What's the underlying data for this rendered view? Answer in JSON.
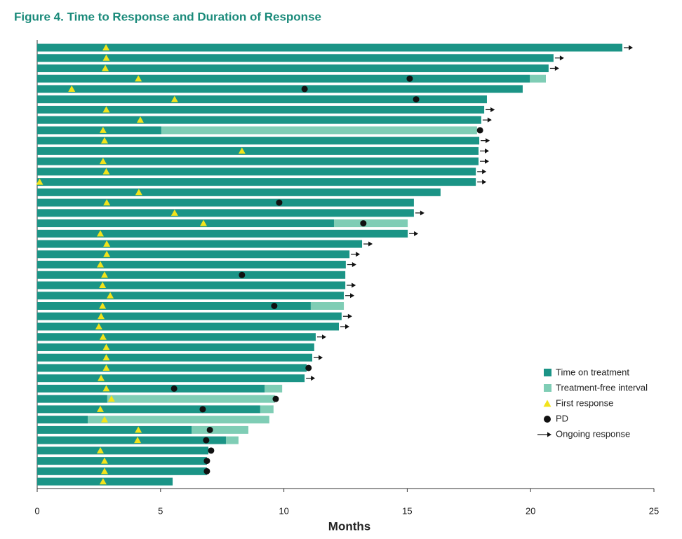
{
  "chart_data": {
    "type": "swimmer",
    "title": "Figure 4. Time to Response and Duration of Response",
    "x_label": "Months",
    "xlim": [
      0,
      25
    ],
    "xticks": [
      0,
      5,
      10,
      15,
      20,
      25
    ],
    "series": [
      {
        "name": "Time on treatment",
        "color": "#1b9486",
        "values": [
          23.72,
          20.93,
          20.73,
          19.97,
          19.68,
          18.23,
          18.12,
          18.0,
          5.03,
          17.92,
          17.89,
          17.89,
          17.78,
          17.78,
          16.35,
          15.27,
          15.27,
          12.03,
          15.02,
          13.17,
          12.66,
          12.51,
          12.49,
          12.49,
          12.43,
          11.09,
          12.34,
          12.23,
          11.29,
          11.23,
          11.15,
          10.92,
          10.84,
          9.22,
          2.84,
          9.04,
          2.05,
          6.26,
          7.65,
          6.94,
          6.88,
          6.88,
          5.49
        ]
      },
      {
        "name": "Treatment-free interval",
        "color": "#7fcdb5",
        "values": [
          null,
          null,
          null,
          20.62,
          null,
          null,
          null,
          null,
          17.83,
          null,
          null,
          null,
          null,
          null,
          null,
          null,
          null,
          15.02,
          null,
          null,
          null,
          null,
          null,
          null,
          null,
          12.43,
          null,
          null,
          null,
          null,
          null,
          null,
          null,
          9.93,
          9.64,
          9.58,
          9.41,
          8.56,
          8.16,
          null,
          null,
          null,
          null
        ]
      },
      {
        "name": "First response",
        "color": "#f2e31b",
        "values": [
          2.79,
          2.8,
          2.76,
          4.1,
          1.4,
          5.57,
          2.8,
          4.18,
          2.67,
          2.73,
          8.3,
          2.67,
          2.8,
          0.1,
          4.12,
          2.82,
          5.57,
          6.74,
          2.56,
          2.82,
          2.82,
          2.56,
          2.73,
          2.65,
          2.96,
          2.65,
          2.59,
          2.5,
          2.67,
          2.8,
          2.8,
          2.8,
          2.59,
          2.8,
          3.01,
          2.56,
          2.73,
          4.1,
          4.07,
          2.56,
          2.73,
          2.73,
          2.67
        ]
      },
      {
        "name": "PD",
        "color": "#111111",
        "values": [
          null,
          null,
          null,
          15.1,
          10.84,
          15.36,
          null,
          null,
          17.95,
          null,
          null,
          null,
          null,
          null,
          null,
          9.81,
          null,
          13.22,
          null,
          null,
          null,
          null,
          8.3,
          null,
          null,
          9.61,
          null,
          null,
          null,
          null,
          null,
          11.0,
          null,
          5.55,
          9.67,
          6.71,
          null,
          7.0,
          6.85,
          7.05,
          6.88,
          6.88,
          null
        ]
      },
      {
        "name": "Ongoing response",
        "color": "#111111",
        "values": [
          true,
          true,
          true,
          false,
          false,
          false,
          true,
          true,
          false,
          true,
          true,
          true,
          true,
          true,
          false,
          false,
          true,
          false,
          true,
          true,
          true,
          true,
          false,
          true,
          true,
          false,
          true,
          true,
          true,
          false,
          true,
          false,
          true,
          false,
          false,
          false,
          false,
          false,
          false,
          false,
          false,
          false,
          false
        ]
      }
    ]
  }
}
